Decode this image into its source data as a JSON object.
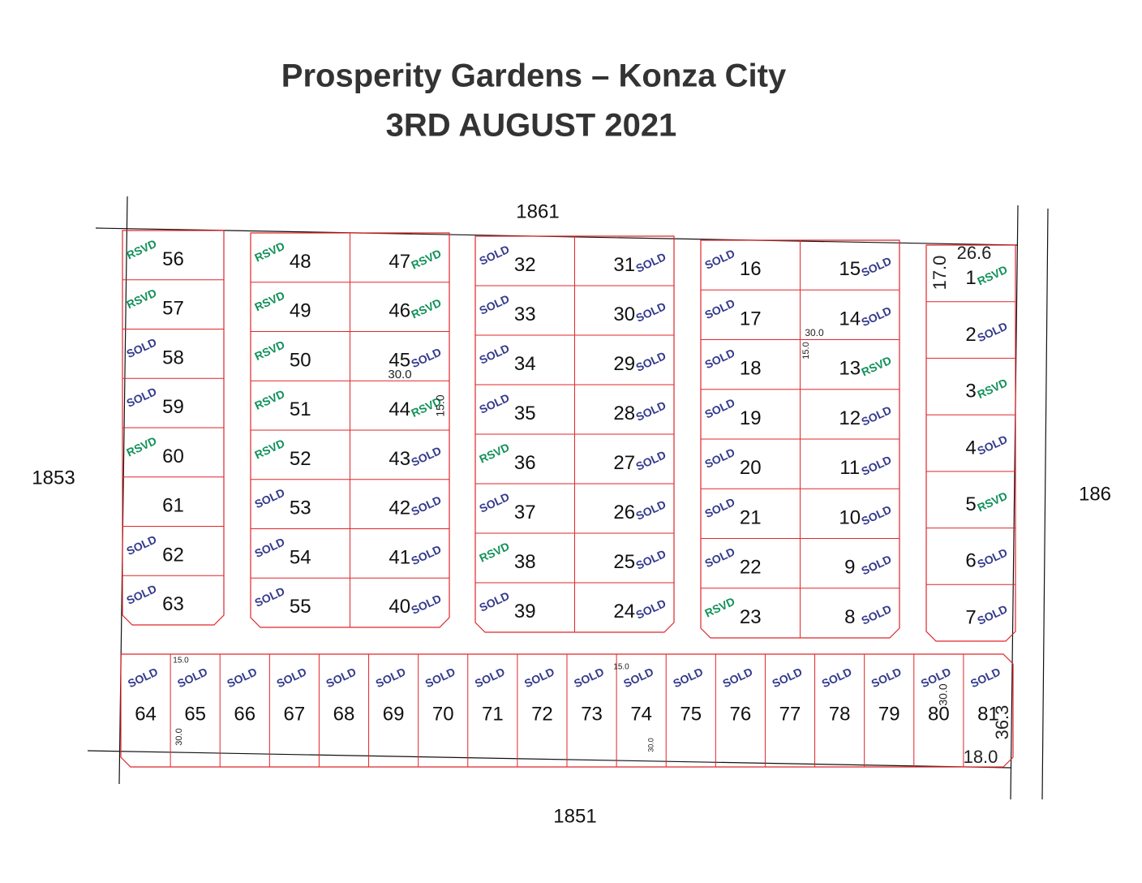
{
  "header": {
    "title": "Prosperity Gardens – Konza City",
    "date": "3RD AUGUST 2021"
  },
  "roads": [
    "1861",
    "1853",
    "1851",
    "186"
  ],
  "blocks": [
    {
      "plots": [
        {
          "number": 56,
          "status": "RSVD"
        },
        {
          "number": 57,
          "status": "RSVD"
        },
        {
          "number": 58,
          "status": "SOLD"
        },
        {
          "number": 59,
          "status": "SOLD"
        },
        {
          "number": 60,
          "status": "RSVD"
        },
        {
          "number": 61
        },
        {
          "number": 62,
          "status": "SOLD"
        },
        {
          "number": 63,
          "status": "SOLD"
        }
      ]
    },
    {
      "plots": [
        {
          "number": 48,
          "status": "RSVD"
        },
        {
          "number": 49,
          "status": "RSVD"
        },
        {
          "number": 50,
          "status": "RSVD"
        },
        {
          "number": 51,
          "status": "RSVD"
        },
        {
          "number": 52,
          "status": "RSVD"
        },
        {
          "number": 53,
          "status": "SOLD"
        },
        {
          "number": 54,
          "status": "SOLD"
        },
        {
          "number": 55,
          "status": "SOLD"
        },
        {
          "number": 47,
          "status": "RSVD"
        },
        {
          "number": 46,
          "status": "RSVD"
        },
        {
          "number": 45,
          "status": "SOLD"
        },
        {
          "number": 44,
          "status": "RSVD"
        },
        {
          "number": 43,
          "status": "SOLD"
        },
        {
          "number": 42,
          "status": "SOLD"
        },
        {
          "number": 41,
          "status": "SOLD"
        },
        {
          "number": 40,
          "status": "SOLD"
        }
      ]
    },
    {
      "plots": [
        {
          "number": 32,
          "status": "SOLD"
        },
        {
          "number": 33,
          "status": "SOLD"
        },
        {
          "number": 34,
          "status": "SOLD"
        },
        {
          "number": 35,
          "status": "SOLD"
        },
        {
          "number": 36,
          "status": "RSVD"
        },
        {
          "number": 37,
          "status": "SOLD"
        },
        {
          "number": 38,
          "status": "RSVD"
        },
        {
          "number": 39,
          "status": "SOLD"
        },
        {
          "number": 31,
          "status": "SOLD"
        },
        {
          "number": 30,
          "status": "SOLD"
        },
        {
          "number": 29,
          "status": "SOLD"
        },
        {
          "number": 28,
          "status": "SOLD"
        },
        {
          "number": 27,
          "status": "SOLD"
        },
        {
          "number": 26,
          "status": "SOLD"
        },
        {
          "number": 25,
          "status": "SOLD"
        },
        {
          "number": 24,
          "status": "SOLD"
        }
      ]
    },
    {
      "plots": [
        {
          "number": 16,
          "status": "SOLD"
        },
        {
          "number": 17,
          "status": "SOLD"
        },
        {
          "number": 18,
          "status": "SOLD"
        },
        {
          "number": 19,
          "status": "SOLD"
        },
        {
          "number": 20,
          "status": "SOLD"
        },
        {
          "number": 21,
          "status": "SOLD"
        },
        {
          "number": 22,
          "status": "SOLD"
        },
        {
          "number": 23,
          "status": "RSVD"
        },
        {
          "number": 15,
          "status": "SOLD"
        },
        {
          "number": 14,
          "status": "SOLD"
        },
        {
          "number": 13,
          "status": "RSVD"
        },
        {
          "number": 12,
          "status": "SOLD"
        },
        {
          "number": 11,
          "status": "SOLD"
        },
        {
          "number": 10,
          "status": "SOLD"
        },
        {
          "number": 9,
          "status": "SOLD"
        },
        {
          "number": 8,
          "status": "SOLD"
        }
      ]
    },
    {
      "plots": [
        {
          "number": 1,
          "status": "RSVD"
        },
        {
          "number": 2,
          "status": "SOLD"
        },
        {
          "number": 3,
          "status": "RSVD"
        },
        {
          "number": 4,
          "status": "SOLD"
        },
        {
          "number": 5,
          "status": "RSVD"
        },
        {
          "number": 6,
          "status": "SOLD"
        },
        {
          "number": 7,
          "status": "SOLD"
        }
      ]
    },
    {
      "plots": [
        {
          "number": 64,
          "status": "SOLD"
        },
        {
          "number": 65,
          "status": "SOLD"
        },
        {
          "number": 66,
          "status": "SOLD"
        },
        {
          "number": 67,
          "status": "SOLD"
        },
        {
          "number": 68,
          "status": "SOLD"
        },
        {
          "number": 69,
          "status": "SOLD"
        },
        {
          "number": 70,
          "status": "SOLD"
        },
        {
          "number": 71,
          "status": "SOLD"
        },
        {
          "number": 72,
          "status": "SOLD"
        },
        {
          "number": 73,
          "status": "SOLD"
        },
        {
          "number": 74,
          "status": "SOLD"
        },
        {
          "number": 75,
          "status": "SOLD"
        },
        {
          "number": 76,
          "status": "SOLD"
        },
        {
          "number": 77,
          "status": "SOLD"
        },
        {
          "number": 78,
          "status": "SOLD"
        },
        {
          "number": 79,
          "status": "SOLD"
        },
        {
          "number": 80,
          "status": "SOLD"
        },
        {
          "number": 81,
          "status": "SOLD"
        }
      ]
    }
  ],
  "dimensions": [
    "26.6",
    "17.0",
    "30.0",
    "15.0",
    "30.0",
    "15.0",
    "15.0",
    "30.0",
    "15.0",
    "30.0",
    "30.0",
    "36.3",
    "18.0"
  ]
}
